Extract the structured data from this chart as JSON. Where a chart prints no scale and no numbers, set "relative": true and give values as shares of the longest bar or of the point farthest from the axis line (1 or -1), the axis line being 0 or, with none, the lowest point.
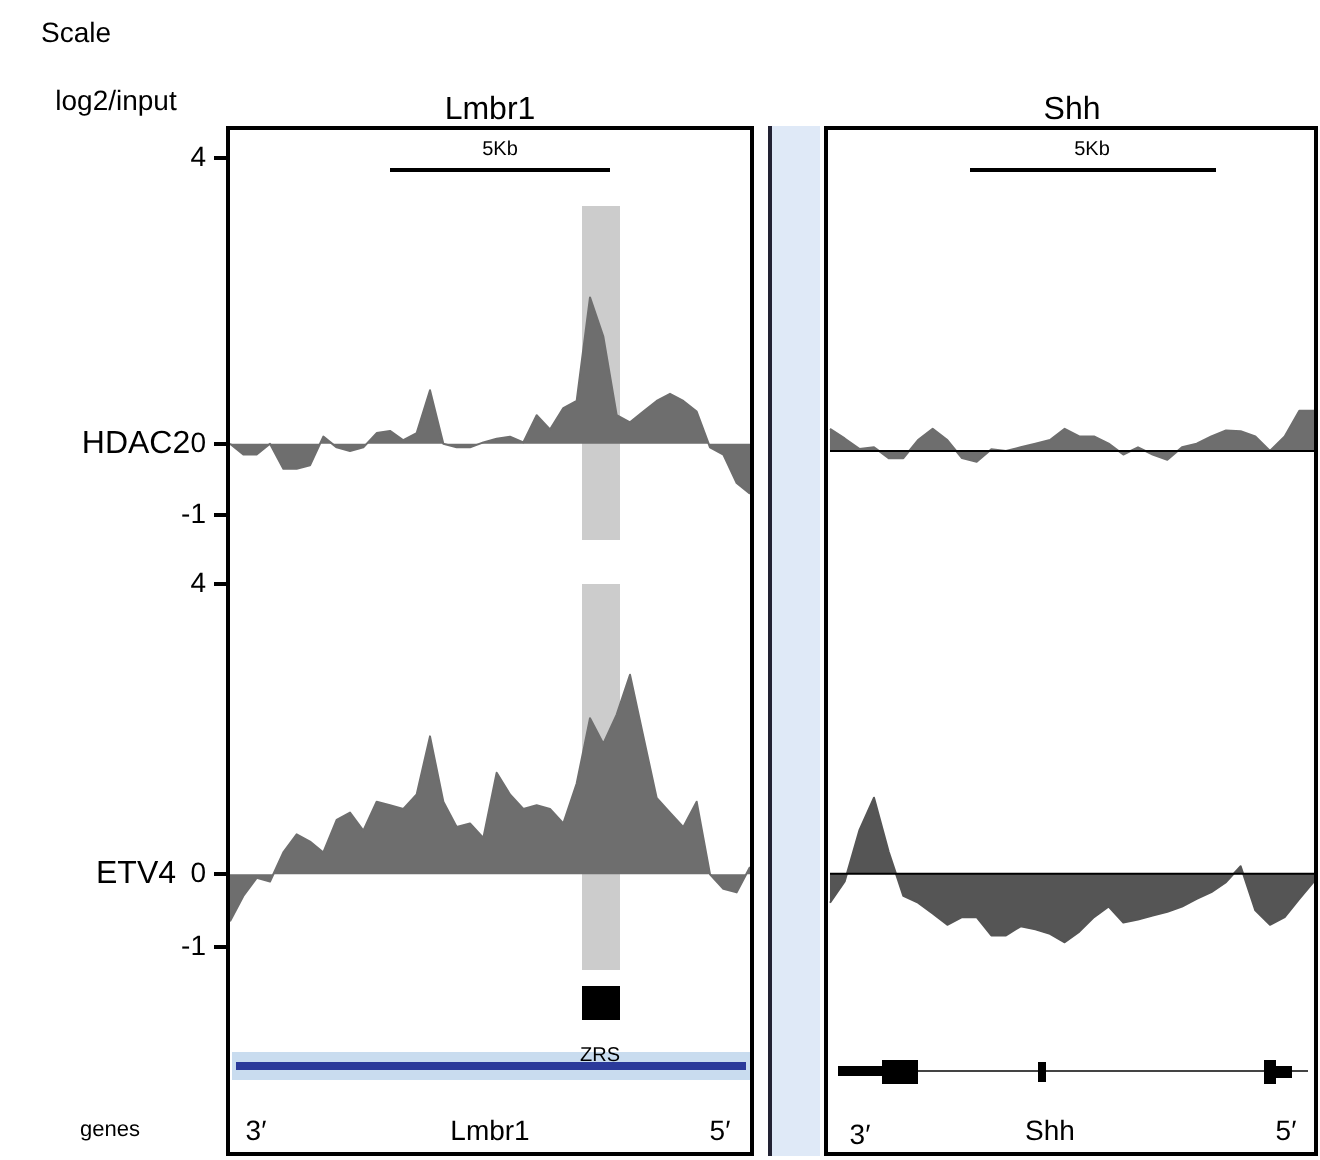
{
  "chart_data": [
    {
      "type": "area",
      "title": "Lmbr1",
      "ylabel": "HDAC2",
      "color": "#6e6e6e",
      "ylim": [
        -1,
        4.45
      ],
      "yticks": [
        4,
        0,
        -1
      ],
      "tick_labels": "y",
      "categories": [
        null,
        null,
        null,
        null,
        null,
        null,
        null,
        null,
        null,
        null,
        null,
        null,
        null,
        null,
        null,
        null,
        null,
        null,
        null,
        null,
        null,
        null,
        null,
        null,
        null,
        null,
        null,
        null,
        null,
        null,
        null,
        null,
        null,
        null,
        null,
        null,
        null,
        null,
        null,
        null
      ],
      "values": [
        0,
        -0.15,
        -0.15,
        0,
        -0.35,
        -0.35,
        -0.3,
        0.1,
        -0.05,
        -0.1,
        -0.05,
        0.15,
        0.18,
        0.05,
        0.15,
        0.75,
        0,
        -0.05,
        -0.05,
        0.02,
        0.07,
        0.1,
        0.02,
        0.4,
        0.2,
        0.5,
        0.6,
        2.05,
        1.5,
        0.4,
        0.3,
        0.45,
        0.6,
        0.7,
        0.6,
        0.45,
        -0.05,
        -0.15,
        -0.55,
        -0.7
      ],
      "annotations": [
        "Scale",
        "log2/input",
        "5Kb"
      ]
    },
    {
      "type": "area",
      "title": "Shh",
      "color": "#6e6e6e",
      "relative": true,
      "tick_labels": false,
      "categories": [
        null,
        null,
        null,
        null,
        null,
        null,
        null,
        null,
        null,
        null,
        null,
        null,
        null,
        null,
        null,
        null,
        null,
        null,
        null,
        null,
        null,
        null,
        null,
        null,
        null,
        null,
        null,
        null,
        null,
        null,
        null,
        null,
        null,
        null
      ],
      "values": [
        0.55,
        0.31,
        0.05,
        0.09,
        -0.18,
        -0.18,
        0.27,
        0.55,
        0.27,
        -0.18,
        -0.27,
        0.04,
        0,
        0.09,
        0.18,
        0.27,
        0.55,
        0.36,
        0.36,
        0.18,
        -0.09,
        0.09,
        -0.09,
        -0.22,
        0.09,
        0.18,
        0.36,
        0.51,
        0.49,
        0.36,
        0,
        0.36,
        1,
        1
      ],
      "annotations": [
        "5Kb"
      ]
    },
    {
      "type": "area",
      "ylabel": "ETV4",
      "color": "#6e6e6e",
      "ylim": [
        -3.9,
        4
      ],
      "yticks": [
        4,
        0,
        -1
      ],
      "tick_labels": "y",
      "categories": [
        null,
        null,
        null,
        null,
        null,
        null,
        null,
        null,
        null,
        null,
        null,
        null,
        null,
        null,
        null,
        null,
        null,
        null,
        null,
        null,
        null,
        null,
        null,
        null,
        null,
        null,
        null,
        null,
        null,
        null,
        null,
        null,
        null,
        null,
        null,
        null,
        null,
        null,
        null,
        null
      ],
      "values": [
        -0.65,
        -0.3,
        -0.05,
        -0.1,
        0.3,
        0.55,
        0.45,
        0.3,
        0.75,
        0.85,
        0.6,
        1,
        0.95,
        0.9,
        1.1,
        1.9,
        1,
        0.65,
        0.7,
        0.5,
        1.4,
        1.1,
        0.9,
        0.95,
        0.9,
        0.7,
        1.25,
        2.15,
        1.8,
        2.2,
        2.75,
        1.9,
        1.05,
        0.85,
        0.65,
        1,
        0,
        -0.2,
        -0.25,
        0.1
      ],
      "annotations": [
        "ZRS",
        "genes",
        "3′",
        "Lmbr1",
        "5′"
      ]
    },
    {
      "type": "area",
      "color": "#555555",
      "relative": true,
      "tick_labels": false,
      "categories": [
        null,
        null,
        null,
        null,
        null,
        null,
        null,
        null,
        null,
        null,
        null,
        null,
        null,
        null,
        null,
        null,
        null,
        null,
        null,
        null,
        null,
        null,
        null,
        null,
        null,
        null,
        null,
        null,
        null,
        null,
        null,
        null,
        null,
        null
      ],
      "values": [
        -0.38,
        -0.1,
        0.57,
        1,
        0.29,
        -0.29,
        -0.38,
        -0.52,
        -0.67,
        -0.57,
        -0.57,
        -0.81,
        -0.81,
        -0.69,
        -0.73,
        -0.79,
        -0.9,
        -0.76,
        -0.57,
        -0.43,
        -0.64,
        -0.6,
        -0.55,
        -0.5,
        -0.43,
        -0.33,
        -0.24,
        -0.11,
        0.1,
        -0.48,
        -0.67,
        -0.57,
        -0.33,
        -0.1
      ],
      "annotations": [
        "3′",
        "Shh",
        "5′"
      ]
    }
  ]
}
